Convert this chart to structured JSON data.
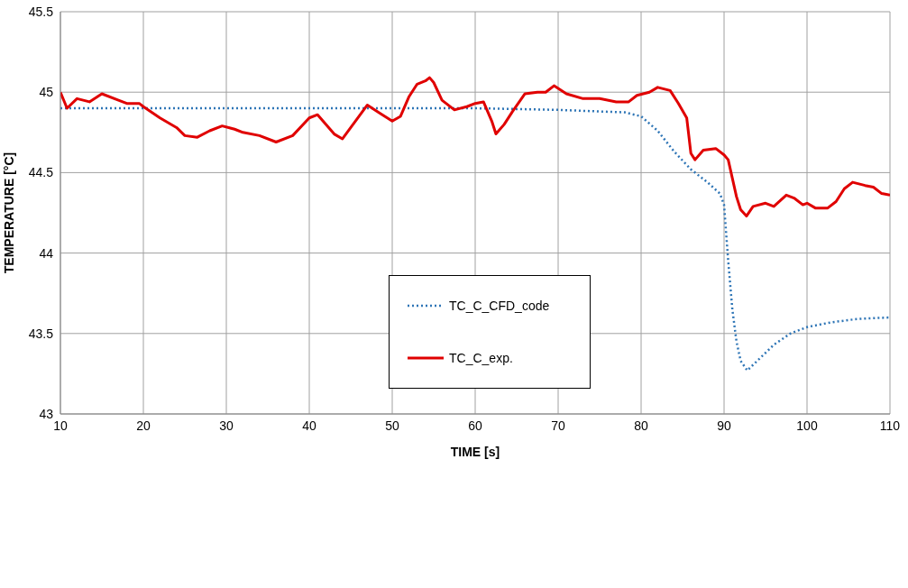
{
  "chart_data": {
    "type": "line",
    "xlabel": "TIME [s]",
    "ylabel": "TEMPERATURE [°C]",
    "xlim": [
      10,
      110
    ],
    "xticks": [
      10,
      20,
      30,
      40,
      50,
      60,
      70,
      80,
      90,
      100,
      110
    ],
    "ylim": [
      43,
      45.5
    ],
    "yticks": [
      43,
      43.5,
      44,
      44.5,
      45,
      45.5
    ],
    "grid": true,
    "legend": "center",
    "marker": "none",
    "series": [
      {
        "name": "TC_C_CFD_code",
        "color": "#2e75b6",
        "line_style": "dotted",
        "x": [
          10,
          20,
          30,
          40,
          50,
          60,
          65,
          70,
          75,
          78,
          80,
          82,
          84,
          86,
          88,
          89.5,
          90,
          90.5,
          91,
          91.5,
          92,
          92.8,
          94,
          96,
          98,
          100,
          103,
          106,
          110
        ],
        "values": [
          44.9,
          44.9,
          44.9,
          44.9,
          44.9,
          44.9,
          44.895,
          44.89,
          44.88,
          44.875,
          44.85,
          44.76,
          44.63,
          44.52,
          44.44,
          44.37,
          44.3,
          43.95,
          43.65,
          43.45,
          43.33,
          43.27,
          43.33,
          43.43,
          43.5,
          43.54,
          43.57,
          43.59,
          43.6
        ]
      },
      {
        "name": "TC_C_exp.",
        "color": "#e00000",
        "line_style": "solid",
        "x": [
          10,
          10.8,
          12,
          13.5,
          15,
          17,
          18,
          19.5,
          20,
          22,
          24,
          25,
          26.5,
          28,
          29.5,
          31,
          32,
          34,
          36,
          38,
          40,
          41,
          43,
          44,
          45,
          47,
          48.5,
          50,
          51,
          52,
          53,
          54,
          54.5,
          55,
          56,
          57.5,
          59,
          60,
          61,
          62,
          62.5,
          63.5,
          64.5,
          66,
          67.5,
          68.5,
          69.5,
          71,
          73,
          75,
          77,
          78.5,
          79.5,
          81,
          82,
          83.5,
          84.5,
          85.5,
          86,
          86.5,
          87.5,
          89,
          90,
          90.5,
          91.5,
          92,
          92.7,
          93.5,
          95,
          96,
          97.5,
          98.5,
          99.5,
          100,
          101,
          102.5,
          103.5,
          104.5,
          105.5,
          107,
          108,
          109,
          110
        ],
        "values": [
          45.0,
          44.9,
          44.96,
          44.94,
          44.99,
          44.95,
          44.93,
          44.93,
          44.91,
          44.84,
          44.78,
          44.73,
          44.72,
          44.76,
          44.79,
          44.77,
          44.75,
          44.73,
          44.69,
          44.73,
          44.84,
          44.86,
          44.74,
          44.71,
          44.78,
          44.92,
          44.87,
          44.82,
          44.85,
          44.97,
          45.05,
          45.07,
          45.09,
          45.06,
          44.95,
          44.89,
          44.91,
          44.93,
          44.94,
          44.82,
          44.74,
          44.8,
          44.88,
          44.99,
          45.0,
          45.0,
          45.04,
          44.99,
          44.96,
          44.96,
          44.94,
          44.94,
          44.98,
          45.0,
          45.03,
          45.01,
          44.93,
          44.84,
          44.62,
          44.58,
          44.64,
          44.65,
          44.61,
          44.58,
          44.35,
          44.27,
          44.23,
          44.29,
          44.31,
          44.29,
          44.36,
          44.34,
          44.3,
          44.31,
          44.28,
          44.28,
          44.32,
          44.4,
          44.44,
          44.42,
          44.41,
          44.37,
          44.36
        ]
      }
    ]
  }
}
